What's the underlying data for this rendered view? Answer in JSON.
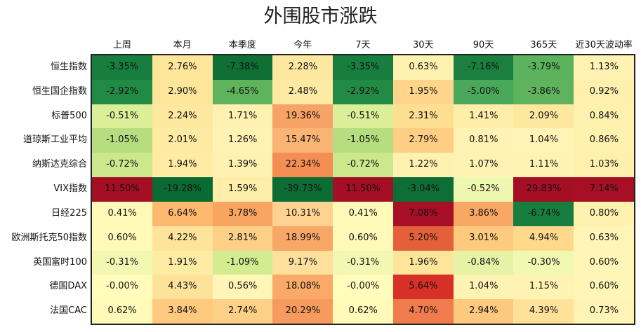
{
  "chart_data": {
    "type": "heatmap",
    "title": "外围股市涨跌",
    "columns": [
      "上周",
      "本月",
      "本季度",
      "今年",
      "7天",
      "30天",
      "90天",
      "365天",
      "近30天波动率"
    ],
    "rows": [
      "恒生指数",
      "恒生国企指数",
      "标普500",
      "道琼斯工业平均",
      "纳斯达克综合",
      "VIX指数",
      "日经225",
      "欧洲斯托克50指数",
      "英国富时100",
      "德国DAX",
      "法国CAC"
    ],
    "cells": [
      [
        "-3.35%",
        "2.76%",
        "-7.38%",
        "2.28%",
        "-3.35%",
        "0.63%",
        "-7.16%",
        "-3.79%",
        "1.13%"
      ],
      [
        "-2.92%",
        "2.90%",
        "-4.65%",
        "2.48%",
        "-2.92%",
        "1.95%",
        "-5.00%",
        "-3.86%",
        "0.92%"
      ],
      [
        "-0.51%",
        "2.24%",
        "1.71%",
        "19.36%",
        "-0.51%",
        "2.31%",
        "1.41%",
        "2.09%",
        "0.84%"
      ],
      [
        "-1.05%",
        "2.01%",
        "1.26%",
        "15.47%",
        "-1.05%",
        "2.79%",
        "0.81%",
        "1.04%",
        "0.86%"
      ],
      [
        "-0.72%",
        "1.94%",
        "1.39%",
        "22.34%",
        "-0.72%",
        "1.22%",
        "1.07%",
        "1.11%",
        "1.03%"
      ],
      [
        "11.50%",
        "-19.28%",
        "1.59%",
        "-39.73%",
        "11.50%",
        "-3.04%",
        "-0.52%",
        "29.83%",
        "7.14%"
      ],
      [
        "0.41%",
        "6.64%",
        "3.78%",
        "10.31%",
        "0.41%",
        "7.08%",
        "3.86%",
        "-6.74%",
        "0.80%"
      ],
      [
        "0.60%",
        "4.22%",
        "2.81%",
        "18.99%",
        "0.60%",
        "5.20%",
        "3.01%",
        "4.94%",
        "0.63%"
      ],
      [
        "-0.31%",
        "1.91%",
        "-1.09%",
        "9.17%",
        "-0.31%",
        "1.96%",
        "-0.84%",
        "-0.30%",
        "0.60%"
      ],
      [
        "-0.00%",
        "4.43%",
        "0.56%",
        "18.08%",
        "-0.00%",
        "5.64%",
        "1.04%",
        "1.15%",
        "0.60%"
      ],
      [
        "0.62%",
        "3.84%",
        "2.74%",
        "20.29%",
        "0.62%",
        "4.70%",
        "2.94%",
        "4.39%",
        "0.73%"
      ]
    ],
    "cell_colors": [
      [
        "#177e3f",
        "#fde69a",
        "#0f6f35",
        "#fee8a0",
        "#177e3f",
        "#fff1b0",
        "#1a7f3f",
        "#5cb25d",
        "#fff2b2"
      ],
      [
        "#218a44",
        "#fde59a",
        "#5fb35d",
        "#feeaa2",
        "#218a44",
        "#fed58a",
        "#4aa85a",
        "#5fb35d",
        "#fff0ae"
      ],
      [
        "#dcef98",
        "#fee8a0",
        "#fff1b0",
        "#f7a266",
        "#dcef98",
        "#fedf92",
        "#feeeaa",
        "#fee8a0",
        "#fff1ae"
      ],
      [
        "#b6dd80",
        "#feeaa2",
        "#fff2b2",
        "#fab474",
        "#b6dd80",
        "#fdce84",
        "#fff3b4",
        "#fff4b6",
        "#fff1ae"
      ],
      [
        "#cbe88c",
        "#feeba4",
        "#fff1b0",
        "#f58e55",
        "#cbe88c",
        "#fff1b0",
        "#fff3b4",
        "#fff3b4",
        "#fff0ae"
      ],
      [
        "#a50f26",
        "#0a6a33",
        "#ffedaa",
        "#0d6c34",
        "#a50f26",
        "#0e6e35",
        "#eef7b0",
        "#a50f26",
        "#a60f26"
      ],
      [
        "#fffab8",
        "#fdb96e",
        "#f9a562",
        "#fed291",
        "#fffab8",
        "#a70f27",
        "#f9a764",
        "#177e3f",
        "#fff1ae"
      ],
      [
        "#fffab8",
        "#fee39a",
        "#fdd088",
        "#f8a766",
        "#fffab8",
        "#e4603b",
        "#fdca7e",
        "#fed98c",
        "#fff5b6"
      ],
      [
        "#f2f8b2",
        "#feeba4",
        "#d3ec92",
        "#fde09c",
        "#f2f8b2",
        "#fde59a",
        "#e6f3a6",
        "#f1f8b2",
        "#fff5b6"
      ],
      [
        "#fffcbc",
        "#fee29a",
        "#fff5b6",
        "#f9aa68",
        "#fffcbc",
        "#d73027",
        "#fff3b4",
        "#fff3b4",
        "#fff5b6"
      ],
      [
        "#fffab8",
        "#fdca7e",
        "#fdd088",
        "#f69a5e",
        "#fffab8",
        "#f07b4c",
        "#fdc97e",
        "#fee29a",
        "#fff4b6"
      ]
    ]
  }
}
